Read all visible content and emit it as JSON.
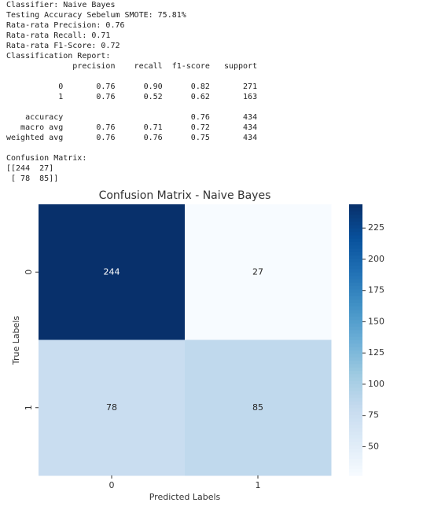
{
  "text_output": {
    "blocks": [
      [
        "Classifier: Naive Bayes",
        "Testing Accuracy Sebelum SMOTE: 75.81%",
        "Rata-rata Precision: 0.76",
        "Rata-rata Recall: 0.71",
        "Rata-rata F1-Score: 0.72",
        "Classification Report:",
        "              precision    recall  f1-score   support"
      ],
      [
        "           0       0.76      0.90      0.82       271",
        "           1       0.76      0.52      0.62       163"
      ],
      [
        "    accuracy                           0.76       434",
        "   macro avg       0.76      0.71      0.72       434",
        "weighted avg       0.76      0.76      0.75       434"
      ],
      [
        "Confusion Matrix:",
        "[[244  27]",
        " [ 78  85]]"
      ]
    ]
  },
  "chart_data": {
    "type": "heatmap",
    "title": "Confusion Matrix - Naive Bayes",
    "x_label": "Predicted Labels",
    "y_label": "True Labels",
    "x_categories": [
      "0",
      "1"
    ],
    "y_categories": [
      "0",
      "1"
    ],
    "values": [
      [
        244,
        27
      ],
      [
        78,
        85
      ]
    ],
    "colormap": "Blues",
    "zlim": [
      27,
      244
    ],
    "colorbar_ticks": [
      50,
      75,
      100,
      125,
      150,
      175,
      200,
      225
    ]
  }
}
